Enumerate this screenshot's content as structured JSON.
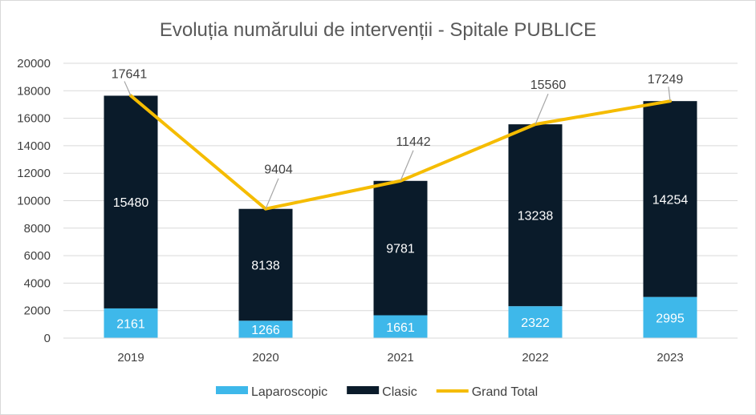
{
  "chart_data": {
    "type": "bar",
    "stacked": true,
    "title": "Evoluția numărului de intervenții - Spitale PUBLICE",
    "categories": [
      "2019",
      "2020",
      "2021",
      "2022",
      "2023"
    ],
    "series": [
      {
        "name": "Laparoscopic",
        "kind": "bar",
        "color": "#3EB8EA",
        "values": [
          2161,
          1266,
          1661,
          2322,
          2995
        ]
      },
      {
        "name": "Clasic",
        "kind": "bar",
        "color": "#0A1B2A",
        "values": [
          15480,
          8138,
          9781,
          13238,
          14254
        ]
      },
      {
        "name": "Grand Total",
        "kind": "line",
        "color": "#F5BC00",
        "values": [
          17641,
          9404,
          11442,
          15560,
          17249
        ]
      }
    ],
    "ylim": [
      0,
      20000
    ],
    "yticks": [
      0,
      2000,
      4000,
      6000,
      8000,
      10000,
      12000,
      14000,
      16000,
      18000,
      20000
    ],
    "grid": true,
    "legend_position": "bottom",
    "xlabel": "",
    "ylabel": ""
  }
}
